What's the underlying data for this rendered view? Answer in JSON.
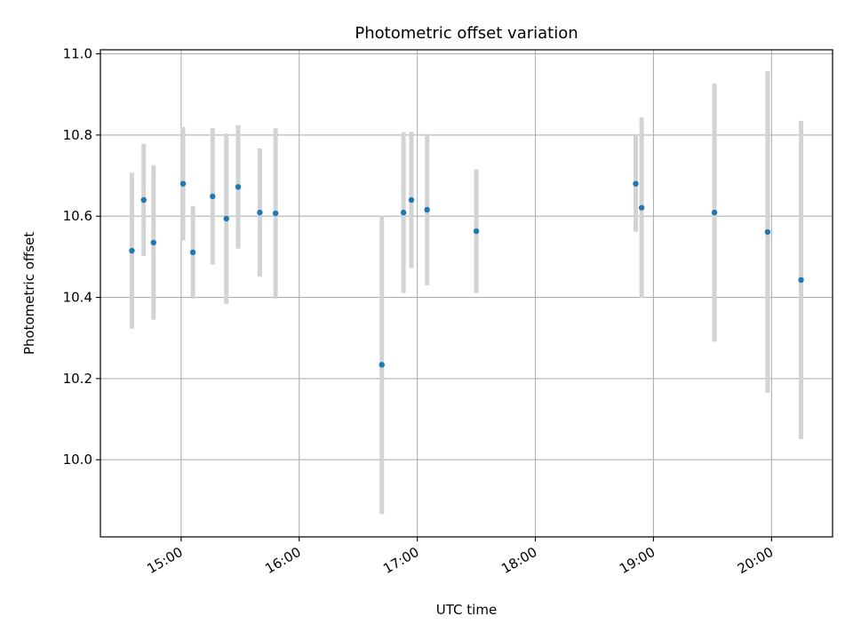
{
  "chart_data": {
    "type": "scatter",
    "title": "Photometric offset variation",
    "xlabel": "UTC time",
    "ylabel": "Photometric offset",
    "xlim": [
      "14:19",
      "20:31"
    ],
    "ylim": [
      9.81,
      11.01
    ],
    "x_ticks": [
      "15:00",
      "16:00",
      "17:00",
      "18:00",
      "19:00",
      "20:00"
    ],
    "y_ticks": [
      10.0,
      10.2,
      10.4,
      10.6,
      10.8,
      11.0
    ],
    "y_tick_labels": [
      "10.0",
      "10.2",
      "10.4",
      "10.6",
      "10.8",
      "11.0"
    ],
    "grid": true,
    "point_color": "#1f77b4",
    "errorbar_color": "#d3d3d3",
    "series": [
      {
        "points": [
          {
            "x": "14:35",
            "y": 10.515,
            "err": 0.192
          },
          {
            "x": "14:41",
            "y": 10.64,
            "err": 0.138
          },
          {
            "x": "14:46",
            "y": 10.535,
            "err": 0.19
          },
          {
            "x": "15:01",
            "y": 10.68,
            "err": 0.14
          },
          {
            "x": "15:06",
            "y": 10.511,
            "err": 0.114
          },
          {
            "x": "15:16",
            "y": 10.649,
            "err": 0.168
          },
          {
            "x": "15:23",
            "y": 10.594,
            "err": 0.21
          },
          {
            "x": "15:29",
            "y": 10.672,
            "err": 0.152
          },
          {
            "x": "15:40",
            "y": 10.609,
            "err": 0.158
          },
          {
            "x": "15:48",
            "y": 10.607,
            "err": 0.21
          },
          {
            "x": "16:42",
            "y": 10.234,
            "err": 0.368
          },
          {
            "x": "16:53",
            "y": 10.609,
            "err": 0.198
          },
          {
            "x": "16:57",
            "y": 10.64,
            "err": 0.168
          },
          {
            "x": "17:05",
            "y": 10.616,
            "err": 0.186
          },
          {
            "x": "17:30",
            "y": 10.563,
            "err": 0.152
          },
          {
            "x": "18:51",
            "y": 10.68,
            "err": 0.118
          },
          {
            "x": "18:54",
            "y": 10.621,
            "err": 0.222
          },
          {
            "x": "19:31",
            "y": 10.609,
            "err": 0.318
          },
          {
            "x": "19:58",
            "y": 10.561,
            "err": 0.396
          },
          {
            "x": "20:15",
            "y": 10.443,
            "err": 0.392
          }
        ]
      }
    ]
  }
}
